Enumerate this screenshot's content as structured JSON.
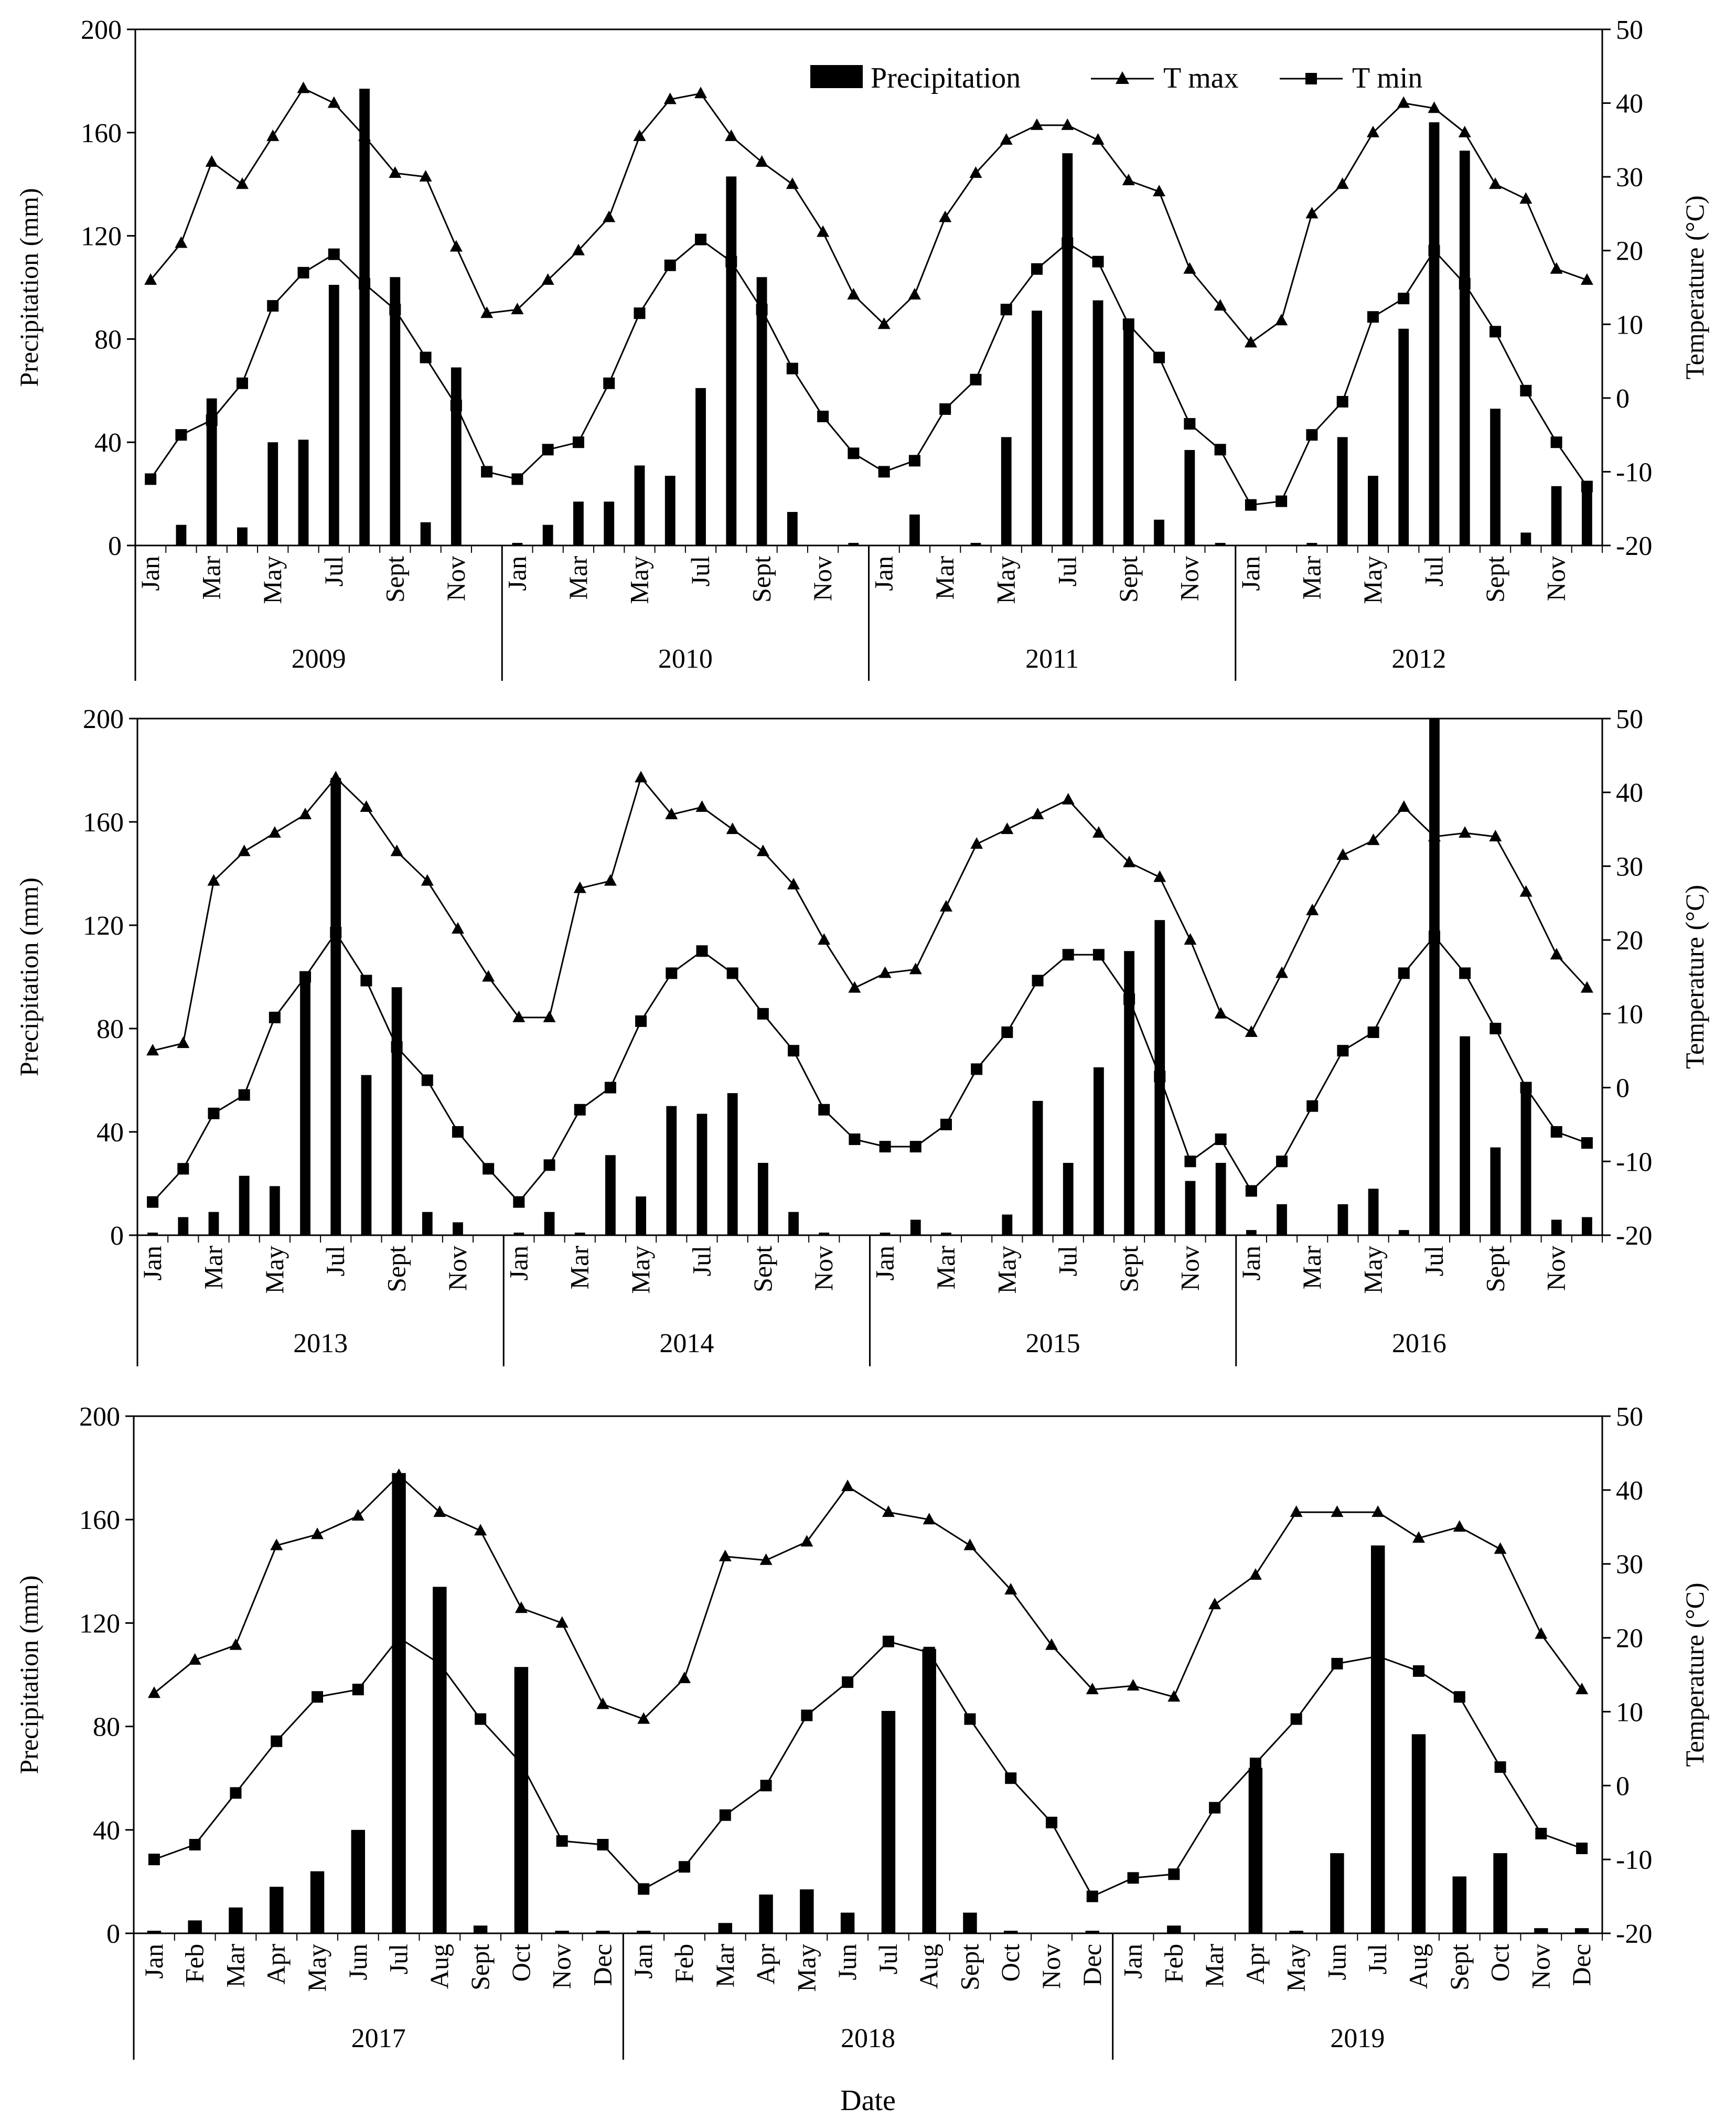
{
  "figure": {
    "xlabel": "Date",
    "legend": [
      "Precipitation",
      "T max",
      "T min"
    ]
  },
  "chart_data": [
    {
      "type": "bar+line",
      "ylabel": "Precipitation  (mm)",
      "y2label": "Temperature  (°C)",
      "ylim": [
        0,
        200
      ],
      "y2lim": [
        -20,
        50
      ],
      "legend_position": "top-right",
      "years": [
        "2009",
        "2010",
        "2011",
        "2012"
      ],
      "tick_labels": [
        "Jan",
        "",
        "Mar",
        "",
        "May",
        "",
        "Jul",
        "",
        "Sept",
        "",
        "Nov",
        "",
        "Jan",
        "",
        "Mar",
        "",
        "May",
        "",
        "Jul",
        "",
        "Sept",
        "",
        "Nov",
        "",
        "Jan",
        "",
        "Mar",
        "",
        "May",
        "",
        "Jul",
        "",
        "Sept",
        "",
        "Nov",
        "",
        "Jan",
        "",
        "Mar",
        "",
        "May",
        "",
        "Jul",
        "",
        "Sept",
        "",
        "Nov",
        ""
      ],
      "series": [
        {
          "name": "Precipitation",
          "kind": "bar",
          "axis": "left",
          "values": [
            0,
            8,
            57,
            7,
            40,
            41,
            101,
            177,
            104,
            9,
            69,
            0,
            1,
            8,
            17,
            17,
            31,
            27,
            61,
            143,
            104,
            13,
            0,
            1,
            0,
            12,
            0,
            1,
            42,
            91,
            152,
            95,
            88,
            10,
            37,
            1,
            0,
            0,
            1,
            42,
            27,
            84,
            164,
            153,
            53,
            5,
            23,
            23
          ]
        },
        {
          "name": "T max",
          "kind": "line",
          "axis": "right",
          "values": [
            16,
            21,
            32,
            29,
            35.5,
            42,
            40,
            35.5,
            30.5,
            30,
            20.5,
            11.5,
            12,
            16,
            20,
            24.5,
            35.5,
            40.5,
            41.3,
            35.5,
            32,
            29,
            22.5,
            14,
            10,
            14,
            24.5,
            30.5,
            35,
            37,
            37,
            35,
            29.5,
            28,
            17.5,
            12.5,
            7.5,
            10.5,
            25,
            29,
            36,
            40,
            39.3,
            36,
            29,
            27,
            17.5,
            16
          ]
        },
        {
          "name": "T min",
          "kind": "line",
          "axis": "right",
          "values": [
            -11,
            -5,
            -3,
            2,
            12.5,
            17,
            19.5,
            15.5,
            12,
            5.5,
            -1,
            -10,
            -11,
            -7,
            -6,
            2,
            11.5,
            18,
            21.5,
            18.5,
            12,
            4,
            -2.5,
            -7.5,
            -10,
            -8.5,
            -1.5,
            2.5,
            12,
            17.5,
            21,
            18.5,
            10,
            5.5,
            -3.5,
            -7,
            -14.5,
            -14,
            -5,
            -0.5,
            11,
            13.5,
            20,
            15.5,
            9,
            1,
            -6,
            -12
          ]
        }
      ]
    },
    {
      "type": "bar+line",
      "ylabel": "Precipitation  (mm)",
      "y2label": "Temperature  (°C)",
      "ylim": [
        0,
        200
      ],
      "y2lim": [
        -20,
        50
      ],
      "years": [
        "2013",
        "2014",
        "2015",
        "2016"
      ],
      "tick_labels": [
        "Jan",
        "",
        "Mar",
        "",
        "May",
        "",
        "Jul",
        "",
        "Sept",
        "",
        "Nov",
        "",
        "Jan",
        "",
        "Mar",
        "",
        "May",
        "",
        "Jul",
        "",
        "Sept",
        "",
        "Nov",
        "",
        "Jan",
        "",
        "Mar",
        "",
        "May",
        "",
        "Jul",
        "",
        "Sept",
        "",
        "Nov",
        "",
        "Jan",
        "",
        "Mar",
        "",
        "May",
        "",
        "Jul",
        "",
        "Sept",
        "",
        "Nov",
        ""
      ],
      "series": [
        {
          "name": "Precipitation",
          "kind": "bar",
          "axis": "left",
          "values": [
            1,
            7,
            9,
            23,
            19,
            100,
            177,
            62,
            96,
            9,
            5,
            0,
            1,
            9,
            1,
            31,
            15,
            50,
            47,
            55,
            28,
            9,
            1,
            0,
            1,
            6,
            1,
            0,
            8,
            52,
            28,
            65,
            110,
            122,
            21,
            28,
            2,
            12,
            0,
            12,
            18,
            2,
            200,
            77,
            34,
            58,
            6,
            7
          ]
        },
        {
          "name": "T max",
          "kind": "line",
          "axis": "right",
          "values": [
            5,
            6,
            28,
            32,
            34.5,
            37,
            42,
            38,
            32,
            28,
            21.5,
            15,
            9.5,
            9.5,
            27,
            28,
            42,
            37,
            38,
            35,
            32,
            27.5,
            20,
            13.5,
            15.5,
            16,
            24.5,
            33,
            35,
            37,
            39,
            34.5,
            30.5,
            28.5,
            20,
            10,
            7.5,
            15.5,
            24,
            31.5,
            33.5,
            38,
            34,
            34.5,
            34,
            26.5,
            18,
            13.5
          ]
        },
        {
          "name": "T min",
          "kind": "line",
          "axis": "right",
          "values": [
            -15.5,
            -11,
            -3.5,
            -1,
            9.5,
            15,
            21,
            14.5,
            5.5,
            1,
            -6,
            -11,
            -15.5,
            -10.5,
            -3,
            0,
            9,
            15.5,
            18.5,
            15.5,
            10,
            5,
            -3,
            -7,
            -8,
            -8,
            -5,
            2.5,
            7.5,
            14.5,
            18,
            18,
            12,
            1.5,
            -10,
            -7,
            -14,
            -10,
            -2.5,
            5,
            7.5,
            15.5,
            20.5,
            15.5,
            8,
            0,
            -6,
            -7.5
          ]
        }
      ]
    },
    {
      "type": "bar+line",
      "ylabel": "Precipitation  (mm)",
      "y2label": "Temperature  (°C)",
      "ylim": [
        0,
        200
      ],
      "y2lim": [
        -20,
        50
      ],
      "years": [
        "2017",
        "2018",
        "2019"
      ],
      "tick_labels": [
        "Jan",
        "Feb",
        "Mar",
        "Apr",
        "May",
        "Jun",
        "Jul",
        "Aug",
        "Sept",
        "Oct",
        "Nov",
        "Dec",
        "Jan",
        "Feb",
        "Mar",
        "Apr",
        "May",
        "Jun",
        "Jul",
        "Aug",
        "Sept",
        "Oct",
        "Nov",
        "Dec",
        "Jan",
        "Feb",
        "Mar",
        "Apr",
        "May",
        "Jun",
        "Jul",
        "Aug",
        "Sept",
        "Oct",
        "Nov",
        "Dec"
      ],
      "series": [
        {
          "name": "Precipitation",
          "kind": "bar",
          "axis": "left",
          "values": [
            1,
            5,
            10,
            18,
            24,
            40,
            178,
            134,
            3,
            103,
            1,
            1,
            1,
            0,
            4,
            15,
            17,
            8,
            86,
            110,
            8,
            1,
            0,
            1,
            0,
            3,
            0,
            64,
            1,
            31,
            150,
            77,
            22,
            31,
            2,
            2
          ]
        },
        {
          "name": "T max",
          "kind": "line",
          "axis": "right",
          "values": [
            12.5,
            17,
            19,
            32.5,
            34,
            36.5,
            42,
            37,
            34.5,
            24,
            22,
            11,
            9,
            14.5,
            31,
            30.5,
            33,
            40.5,
            37,
            36,
            32.5,
            26.5,
            19,
            13,
            13.5,
            12,
            24.5,
            28.5,
            37,
            37,
            37,
            33.5,
            35,
            32,
            20.5,
            13
          ]
        },
        {
          "name": "T min",
          "kind": "line",
          "axis": "right",
          "values": [
            -10,
            -8,
            -1,
            6,
            12,
            13,
            20,
            16.5,
            9,
            3,
            -7.5,
            -8,
            -14,
            -11,
            -4,
            0,
            9.5,
            14,
            19.5,
            18,
            9,
            1,
            -5,
            -15,
            -12.5,
            -12,
            -3,
            3,
            9,
            16.5,
            17.5,
            15.5,
            12,
            2.5,
            -6.5,
            -8.5
          ]
        }
      ]
    }
  ]
}
